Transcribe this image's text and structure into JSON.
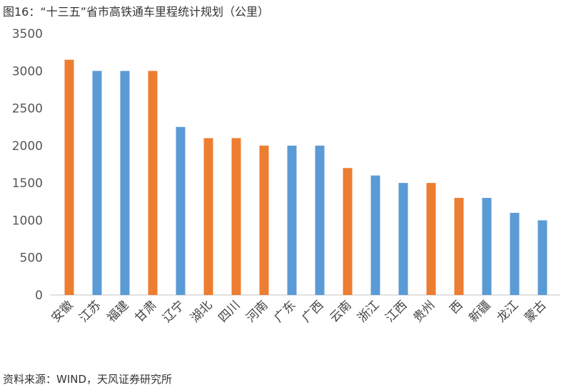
{
  "chart_data": {
    "type": "bar",
    "title": "图16：“十三五”省市高铁通车里程统计规划（公里）",
    "source": "资料来源：WIND，天风证券研究所",
    "categories": [
      "安徽",
      "江苏",
      "福建",
      "甘肃",
      "辽宁",
      "湖北",
      "四川",
      "河南",
      "广东",
      "广西",
      "云南",
      "浙江",
      "江西",
      "贵州",
      "西",
      "新疆",
      "龙江",
      "蒙古"
    ],
    "values": [
      3150,
      3000,
      3000,
      3000,
      2250,
      2100,
      2100,
      2000,
      2000,
      2000,
      1700,
      1600,
      1500,
      1500,
      1300,
      1300,
      1100,
      1000
    ],
    "highlight": [
      true,
      false,
      false,
      true,
      false,
      true,
      true,
      true,
      false,
      false,
      true,
      false,
      false,
      true,
      true,
      false,
      false,
      false
    ],
    "colors": {
      "highlight": "#ED7D31",
      "default": "#5B9BD5"
    },
    "ylim": [
      0,
      3500
    ],
    "yticks": [
      0,
      500,
      1000,
      1500,
      2000,
      2500,
      3000,
      3500
    ],
    "grid": false,
    "xlabel": "",
    "ylabel": ""
  }
}
